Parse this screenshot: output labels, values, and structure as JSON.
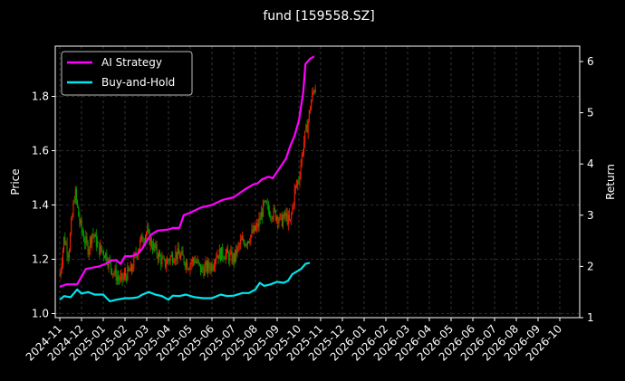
{
  "chart_data": {
    "type": "line",
    "title": "fund [159558.SZ]",
    "ylabel": "Price",
    "y2label": "Return",
    "ylim": [
      0.985,
      1.985
    ],
    "y2lim": [
      1.0,
      6.3
    ],
    "yticks": [
      "1.0",
      "1.2",
      "1.4",
      "1.6",
      "1.8"
    ],
    "y2ticks": [
      "1",
      "2",
      "3",
      "4",
      "5",
      "6"
    ],
    "xticks": [
      "2024-11",
      "2024-12",
      "2025-01",
      "2025-02",
      "2025-03",
      "2025-04",
      "2025-05",
      "2025-06",
      "2025-07",
      "2025-08",
      "2025-09",
      "2025-10",
      "2025-11",
      "2025-12",
      "2026-01",
      "2026-02",
      "2026-03",
      "2026-04",
      "2026-05",
      "2026-06",
      "2026-07",
      "2026-08",
      "2026-09",
      "2026-10"
    ],
    "grid": true,
    "legend_position": "top-left",
    "colors": {
      "background": "#000000",
      "ai_strategy": "#ff00ff",
      "buy_and_hold": "#00e5ee",
      "candle_up": "#ff2200",
      "candle_down": "#00a000",
      "grid": "#555555"
    },
    "series": [
      {
        "name": "AI Strategy",
        "axis": "right",
        "points": [
          [
            0.0,
            1.6
          ],
          [
            0.3,
            1.65
          ],
          [
            0.8,
            1.65
          ],
          [
            1.0,
            1.8
          ],
          [
            1.2,
            1.95
          ],
          [
            1.8,
            2.0
          ],
          [
            2.1,
            2.05
          ],
          [
            2.4,
            2.12
          ],
          [
            2.6,
            2.12
          ],
          [
            2.8,
            2.05
          ],
          [
            3.0,
            2.2
          ],
          [
            3.3,
            2.2
          ],
          [
            3.6,
            2.25
          ],
          [
            3.8,
            2.35
          ],
          [
            4.0,
            2.5
          ],
          [
            4.2,
            2.62
          ],
          [
            4.5,
            2.7
          ],
          [
            5.0,
            2.72
          ],
          [
            5.2,
            2.75
          ],
          [
            5.5,
            2.75
          ],
          [
            5.7,
            3.0
          ],
          [
            6.0,
            3.05
          ],
          [
            6.5,
            3.15
          ],
          [
            7.0,
            3.2
          ],
          [
            7.5,
            3.3
          ],
          [
            8.0,
            3.35
          ],
          [
            8.5,
            3.5
          ],
          [
            8.9,
            3.6
          ],
          [
            9.1,
            3.62
          ],
          [
            9.3,
            3.7
          ],
          [
            9.6,
            3.75
          ],
          [
            9.8,
            3.72
          ],
          [
            10.0,
            3.85
          ],
          [
            10.4,
            4.1
          ],
          [
            10.6,
            4.35
          ],
          [
            10.8,
            4.55
          ],
          [
            11.0,
            4.85
          ],
          [
            11.2,
            5.4
          ],
          [
            11.3,
            5.95
          ],
          [
            11.5,
            6.05
          ],
          [
            11.7,
            6.1
          ]
        ]
      },
      {
        "name": "Buy-and-Hold",
        "axis": "right",
        "points": [
          [
            0.0,
            1.35
          ],
          [
            0.2,
            1.42
          ],
          [
            0.5,
            1.4
          ],
          [
            0.8,
            1.55
          ],
          [
            1.0,
            1.47
          ],
          [
            1.3,
            1.5
          ],
          [
            1.6,
            1.45
          ],
          [
            2.0,
            1.45
          ],
          [
            2.3,
            1.32
          ],
          [
            2.6,
            1.35
          ],
          [
            3.0,
            1.38
          ],
          [
            3.3,
            1.38
          ],
          [
            3.6,
            1.4
          ],
          [
            3.8,
            1.45
          ],
          [
            4.1,
            1.5
          ],
          [
            4.4,
            1.45
          ],
          [
            4.7,
            1.42
          ],
          [
            5.0,
            1.35
          ],
          [
            5.2,
            1.43
          ],
          [
            5.5,
            1.42
          ],
          [
            5.8,
            1.45
          ],
          [
            6.2,
            1.4
          ],
          [
            6.6,
            1.38
          ],
          [
            7.0,
            1.38
          ],
          [
            7.4,
            1.45
          ],
          [
            7.7,
            1.42
          ],
          [
            8.0,
            1.43
          ],
          [
            8.4,
            1.48
          ],
          [
            8.7,
            1.48
          ],
          [
            9.0,
            1.55
          ],
          [
            9.2,
            1.68
          ],
          [
            9.4,
            1.62
          ],
          [
            9.7,
            1.65
          ],
          [
            10.0,
            1.7
          ],
          [
            10.3,
            1.68
          ],
          [
            10.5,
            1.72
          ],
          [
            10.7,
            1.85
          ],
          [
            10.9,
            1.9
          ],
          [
            11.1,
            1.95
          ],
          [
            11.3,
            2.05
          ],
          [
            11.5,
            2.07
          ]
        ]
      },
      {
        "name": "Price",
        "axis": "left",
        "style": "candles",
        "points": [
          [
            0.0,
            1.14
          ],
          [
            0.2,
            1.28
          ],
          [
            0.4,
            1.22
          ],
          [
            0.6,
            1.38
          ],
          [
            0.7,
            1.45
          ],
          [
            0.9,
            1.34
          ],
          [
            1.1,
            1.28
          ],
          [
            1.3,
            1.24
          ],
          [
            1.5,
            1.3
          ],
          [
            1.8,
            1.24
          ],
          [
            2.1,
            1.22
          ],
          [
            2.3,
            1.18
          ],
          [
            2.5,
            1.15
          ],
          [
            2.8,
            1.12
          ],
          [
            3.0,
            1.14
          ],
          [
            3.3,
            1.16
          ],
          [
            3.5,
            1.22
          ],
          [
            3.8,
            1.28
          ],
          [
            4.0,
            1.3
          ],
          [
            4.2,
            1.26
          ],
          [
            4.5,
            1.22
          ],
          [
            4.8,
            1.18
          ],
          [
            5.0,
            1.2
          ],
          [
            5.3,
            1.22
          ],
          [
            5.6,
            1.21
          ],
          [
            5.9,
            1.18
          ],
          [
            6.2,
            1.2
          ],
          [
            6.5,
            1.16
          ],
          [
            6.8,
            1.17
          ],
          [
            7.0,
            1.18
          ],
          [
            7.2,
            1.22
          ],
          [
            7.6,
            1.22
          ],
          [
            8.0,
            1.2
          ],
          [
            8.3,
            1.26
          ],
          [
            8.6,
            1.27
          ],
          [
            8.9,
            1.3
          ],
          [
            9.1,
            1.32
          ],
          [
            9.4,
            1.4
          ],
          [
            9.6,
            1.38
          ],
          [
            9.8,
            1.37
          ],
          [
            10.0,
            1.36
          ],
          [
            10.2,
            1.34
          ],
          [
            10.4,
            1.36
          ],
          [
            10.6,
            1.33
          ],
          [
            10.8,
            1.45
          ],
          [
            11.0,
            1.5
          ],
          [
            11.2,
            1.62
          ],
          [
            11.4,
            1.7
          ],
          [
            11.6,
            1.8
          ],
          [
            11.8,
            1.85
          ]
        ]
      }
    ]
  }
}
